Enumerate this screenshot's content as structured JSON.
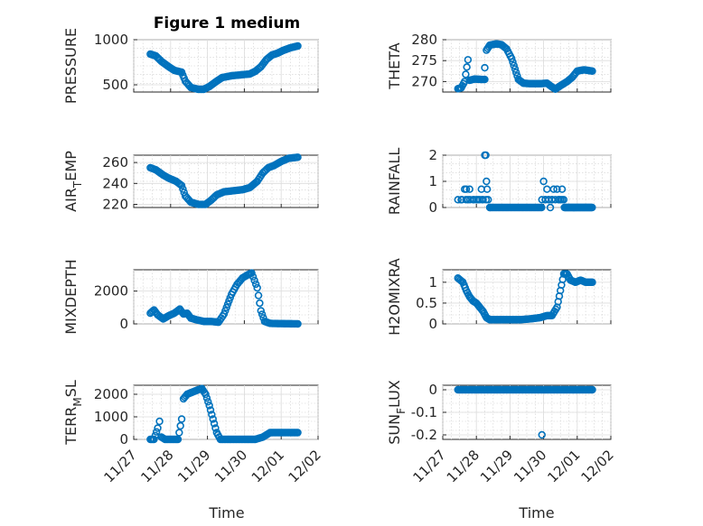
{
  "figure": {
    "title": "Figure 1 medium",
    "x_label": "Time",
    "x_ticks": [
      "11/27",
      "11/28",
      "11/29",
      "11/30",
      "12/01",
      "12/02"
    ]
  },
  "colors": {
    "marker": "#0072BD",
    "axis": "#262626",
    "grid": "#dcdcdc"
  },
  "chart_data": [
    {
      "type": "scatter",
      "ylabel": "PRESSURE",
      "ylabel_sub": "",
      "ylabel_rest": "",
      "ylim": [
        420,
        1000
      ],
      "yticks": [
        500,
        1000
      ],
      "ytick_labels": [
        "500",
        "1000"
      ],
      "xlim": [
        0,
        5
      ],
      "x": "Time (days since 11/27)",
      "curve": [
        [
          0.45,
          840
        ],
        [
          0.6,
          820
        ],
        [
          0.75,
          760
        ],
        [
          0.95,
          700
        ],
        [
          1.1,
          660
        ],
        [
          1.3,
          640
        ],
        [
          1.4,
          540
        ],
        [
          1.55,
          470
        ],
        [
          1.75,
          450
        ],
        [
          1.9,
          450
        ],
        [
          2.05,
          480
        ],
        [
          2.25,
          540
        ],
        [
          2.4,
          580
        ],
        [
          2.65,
          600
        ],
        [
          2.9,
          610
        ],
        [
          3.15,
          620
        ],
        [
          3.3,
          650
        ],
        [
          3.45,
          700
        ],
        [
          3.6,
          780
        ],
        [
          3.75,
          830
        ],
        [
          3.9,
          850
        ],
        [
          4.05,
          880
        ],
        [
          4.25,
          910
        ],
        [
          4.45,
          930
        ]
      ]
    },
    {
      "type": "scatter",
      "ylabel": "THETA",
      "ylabel_sub": "",
      "ylabel_rest": "",
      "ylim": [
        267.5,
        280
      ],
      "yticks": [
        270,
        275,
        280
      ],
      "ytick_labels": [
        "270",
        "275",
        "280"
      ],
      "xlim": [
        0,
        5
      ],
      "curve": [
        [
          0.45,
          268.3
        ],
        [
          0.55,
          268.5
        ],
        [
          0.65,
          270
        ],
        [
          0.75,
          275.2
        ]
      ],
      "curve2": [
        [
          0.8,
          270.3
        ],
        [
          0.95,
          270.6
        ],
        [
          1.15,
          270.5
        ],
        [
          1.25,
          270.5
        ]
      ],
      "curve3": [
        [
          1.25,
          273.3
        ],
        [
          1.3,
          277.5
        ],
        [
          1.4,
          278.7
        ],
        [
          1.6,
          279
        ],
        [
          1.75,
          278.8
        ],
        [
          1.9,
          277.8
        ],
        [
          2.05,
          275.5
        ],
        [
          2.15,
          273
        ],
        [
          2.25,
          270.5
        ],
        [
          2.4,
          269.6
        ],
        [
          2.6,
          269.5
        ],
        [
          2.9,
          269.5
        ],
        [
          3.1,
          269.6
        ],
        [
          3.25,
          268.7
        ],
        [
          3.35,
          268.2
        ],
        [
          3.5,
          269
        ],
        [
          3.7,
          270
        ],
        [
          3.85,
          271
        ],
        [
          4.0,
          272.5
        ],
        [
          4.2,
          272.8
        ],
        [
          4.45,
          272.5
        ]
      ]
    },
    {
      "type": "scatter",
      "ylabel": "AIR",
      "ylabel_sub": "T",
      "ylabel_rest": "EMP",
      "ylim": [
        217,
        267
      ],
      "yticks": [
        220,
        240,
        260
      ],
      "ytick_labels": [
        "220",
        "240",
        "260"
      ],
      "xlim": [
        0,
        5
      ],
      "curve": [
        [
          0.45,
          255
        ],
        [
          0.6,
          253
        ],
        [
          0.8,
          248
        ],
        [
          0.95,
          245
        ],
        [
          1.15,
          242
        ],
        [
          1.3,
          238
        ],
        [
          1.4,
          228
        ],
        [
          1.55,
          222
        ],
        [
          1.75,
          220
        ],
        [
          1.95,
          220
        ],
        [
          2.1,
          224
        ],
        [
          2.25,
          229
        ],
        [
          2.45,
          232
        ],
        [
          2.7,
          233
        ],
        [
          2.95,
          234
        ],
        [
          3.15,
          236
        ],
        [
          3.35,
          242
        ],
        [
          3.5,
          250
        ],
        [
          3.65,
          255
        ],
        [
          3.8,
          257
        ],
        [
          4.0,
          261
        ],
        [
          4.2,
          264
        ],
        [
          4.45,
          265
        ]
      ]
    },
    {
      "type": "scatter",
      "ylabel": "RAINFALL",
      "ylabel_sub": "",
      "ylabel_rest": "",
      "ylim": [
        0,
        2
      ],
      "yticks": [
        0,
        1,
        2
      ],
      "ytick_labels": [
        "0",
        "1",
        "2"
      ],
      "xlim": [
        0,
        5
      ],
      "base": [
        [
          0.45,
          2.0
        ],
        [
          4.45,
          4.45
        ]
      ],
      "points": [
        [
          0.55,
          0.3
        ],
        [
          0.65,
          0.7
        ],
        [
          0.7,
          0.7
        ],
        [
          0.75,
          0.3
        ],
        [
          0.8,
          0.7
        ],
        [
          0.9,
          0.3
        ],
        [
          1.0,
          0.3
        ],
        [
          1.1,
          0.3
        ],
        [
          1.15,
          0.7
        ],
        [
          1.2,
          0.3
        ],
        [
          1.25,
          2.0
        ],
        [
          1.28,
          2.0
        ],
        [
          1.3,
          1.0
        ],
        [
          1.35,
          0.3
        ],
        [
          1.32,
          0.7
        ],
        [
          1.4,
          0.0
        ],
        [
          3.0,
          1.0
        ],
        [
          3.05,
          0.3
        ],
        [
          3.1,
          0.7
        ],
        [
          3.15,
          0.3
        ],
        [
          3.2,
          0.0
        ],
        [
          3.25,
          0.3
        ],
        [
          3.3,
          0.7
        ],
        [
          3.4,
          0.7
        ],
        [
          3.45,
          0.3
        ],
        [
          3.5,
          0.3
        ],
        [
          3.55,
          0.7
        ],
        [
          3.6,
          0.3
        ]
      ]
    },
    {
      "type": "scatter",
      "ylabel": "MIXDEPTH",
      "ylabel_sub": "",
      "ylabel_rest": "",
      "ylim": [
        0,
        3300
      ],
      "yticks": [
        0,
        2000
      ],
      "ytick_labels": [
        "0",
        "2000"
      ],
      "xlim": [
        0,
        5
      ],
      "curve": [
        [
          0.45,
          650
        ],
        [
          0.55,
          850
        ],
        [
          0.65,
          550
        ],
        [
          0.8,
          300
        ],
        [
          0.95,
          500
        ],
        [
          1.1,
          650
        ],
        [
          1.25,
          900
        ],
        [
          1.35,
          600
        ],
        [
          1.45,
          650
        ],
        [
          1.55,
          350
        ],
        [
          1.7,
          250
        ],
        [
          1.9,
          150
        ],
        [
          2.1,
          150
        ],
        [
          2.3,
          100
        ],
        [
          2.45,
          600
        ],
        [
          2.55,
          1200
        ],
        [
          2.65,
          1800
        ],
        [
          2.8,
          2400
        ],
        [
          2.95,
          2800
        ],
        [
          3.1,
          3000
        ],
        [
          3.2,
          3100
        ],
        [
          3.35,
          2200
        ],
        [
          3.45,
          800
        ],
        [
          3.55,
          150
        ],
        [
          3.7,
          30
        ],
        [
          3.9,
          20
        ],
        [
          4.45,
          0
        ]
      ]
    },
    {
      "type": "scatter",
      "ylabel": "H2OMIXRA",
      "ylabel_sub": "",
      "ylabel_rest": "",
      "ylim": [
        0,
        1.3
      ],
      "yticks": [
        0,
        0.5,
        1
      ],
      "ytick_labels": [
        "0",
        "0.5",
        "1"
      ],
      "xlim": [
        0,
        5
      ],
      "curve": [
        [
          0.45,
          1.1
        ],
        [
          0.6,
          1.0
        ],
        [
          0.7,
          0.8
        ],
        [
          0.8,
          0.65
        ],
        [
          0.9,
          0.55
        ],
        [
          1.0,
          0.5
        ],
        [
          1.1,
          0.4
        ],
        [
          1.2,
          0.3
        ],
        [
          1.3,
          0.15
        ],
        [
          1.4,
          0.1
        ],
        [
          1.6,
          0.1
        ],
        [
          1.9,
          0.1
        ],
        [
          2.3,
          0.1
        ],
        [
          2.6,
          0.12
        ],
        [
          2.9,
          0.15
        ],
        [
          3.1,
          0.2
        ],
        [
          3.25,
          0.2
        ],
        [
          3.4,
          0.4
        ],
        [
          3.5,
          0.8
        ],
        [
          3.6,
          1.2
        ],
        [
          3.7,
          1.2
        ],
        [
          3.8,
          1.05
        ],
        [
          3.95,
          1.0
        ],
        [
          4.1,
          1.05
        ],
        [
          4.25,
          1.0
        ],
        [
          4.45,
          1.0
        ]
      ]
    },
    {
      "type": "scatter",
      "ylabel": "TERR",
      "ylabel_sub": "M",
      "ylabel_rest": "SL",
      "ylim": [
        0,
        2400
      ],
      "yticks": [
        0,
        1000,
        2000
      ],
      "ytick_labels": [
        "0",
        "1000",
        "2000"
      ],
      "xlim": [
        0,
        5
      ],
      "curve": [
        [
          0.45,
          0
        ],
        [
          0.55,
          0
        ],
        [
          0.65,
          500
        ],
        [
          0.7,
          800
        ],
        [
          0.75,
          100
        ],
        [
          0.85,
          0
        ],
        [
          1.1,
          0
        ],
        [
          1.2,
          0
        ],
        [
          1.3,
          900
        ],
        [
          1.35,
          1800
        ],
        [
          1.45,
          2000
        ],
        [
          1.6,
          2100
        ],
        [
          1.75,
          2200
        ],
        [
          1.85,
          2250
        ],
        [
          1.95,
          2000
        ],
        [
          2.05,
          1500
        ],
        [
          2.15,
          900
        ],
        [
          2.25,
          300
        ],
        [
          2.35,
          0
        ],
        [
          2.6,
          0
        ],
        [
          3.0,
          0
        ],
        [
          3.3,
          0
        ],
        [
          3.5,
          100
        ],
        [
          3.6,
          200
        ],
        [
          3.7,
          300
        ],
        [
          4.0,
          300
        ],
        [
          4.45,
          300
        ]
      ]
    },
    {
      "type": "scatter",
      "ylabel": "SUN",
      "ylabel_sub": "F",
      "ylabel_rest": "LUX",
      "ylim": [
        -0.22,
        0.02
      ],
      "yticks": [
        -0.2,
        -0.1,
        0
      ],
      "ytick_labels": [
        "-0.2",
        "-0.1",
        "0"
      ],
      "xlim": [
        0,
        5
      ],
      "curve": [
        [
          0.45,
          0
        ],
        [
          4.45,
          0
        ]
      ],
      "outliers": [
        [
          2.95,
          -0.2
        ]
      ]
    }
  ]
}
